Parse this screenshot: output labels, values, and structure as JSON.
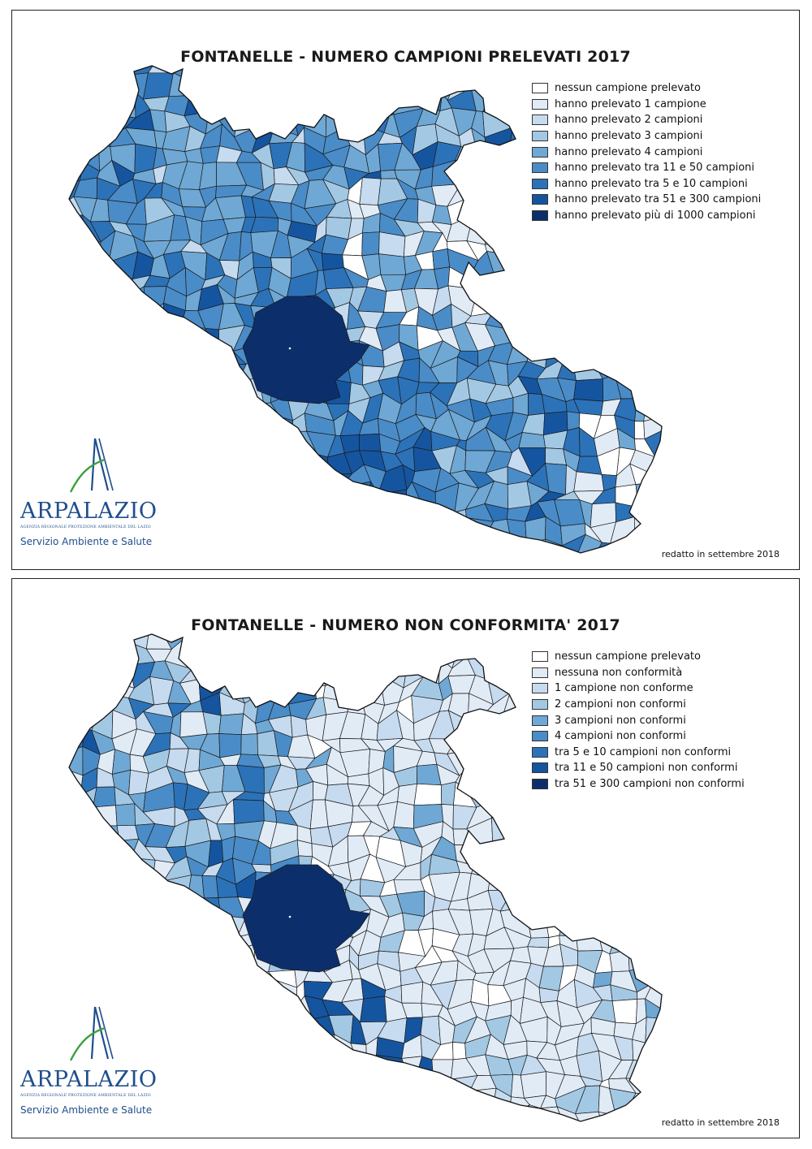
{
  "maps": [
    {
      "title": "FONTANELLE - NUMERO CAMPIONI PRELEVATI 2017",
      "legend": [
        {
          "label": "nessun campione prelevato",
          "color": "#ffffff"
        },
        {
          "label": "hanno prelevato 1 campione",
          "color": "#e1ebf6"
        },
        {
          "label": "hanno prelevato 2 campioni",
          "color": "#c6dbef"
        },
        {
          "label": "hanno prelevato 3 campioni",
          "color": "#a3c8e4"
        },
        {
          "label": "hanno prelevato 4 campioni",
          "color": "#6fa8d4"
        },
        {
          "label": "hanno prelevato tra 11 e 50 campioni",
          "color": "#4a8cc8"
        },
        {
          "label": "hanno prelevato tra 5 e 10 campioni",
          "color": "#2c72b8"
        },
        {
          "label": "hanno prelevato tra 51 e 300 campioni",
          "color": "#1555a0"
        },
        {
          "label": "hanno prelevato più di 1000 campioni",
          "color": "#0c2f6b"
        }
      ],
      "footer": "redatto in settembre 2018"
    },
    {
      "title": "FONTANELLE - NUMERO NON CONFORMITA' 2017",
      "legend": [
        {
          "label": "nessun campione prelevato",
          "color": "#ffffff"
        },
        {
          "label": "nessuna non conformità",
          "color": "#e1ebf6"
        },
        {
          "label": "1 campione non conforme",
          "color": "#c6dbef"
        },
        {
          "label": "2 campioni non conformi",
          "color": "#a3c8e4"
        },
        {
          "label": "3 campioni non conformi",
          "color": "#6fa8d4"
        },
        {
          "label": "4 campioni non conformi",
          "color": "#4a8cc8"
        },
        {
          "label": "tra 5 e 10 campioni non conformi",
          "color": "#2c72b8"
        },
        {
          "label": "tra 11 e 50 campioni non conformi",
          "color": "#1555a0"
        },
        {
          "label": "tra 51 e 300 campioni non conformi",
          "color": "#0c2f6b"
        }
      ],
      "footer": "redatto in settembre 2018"
    }
  ],
  "logo": {
    "name": "ARPALAZIO",
    "subtitle": "AGENZIA REGIONALE PROTEZIONE AMBIENTALE DEL LAZIO",
    "service": "Servizio Ambiente e Salute"
  }
}
